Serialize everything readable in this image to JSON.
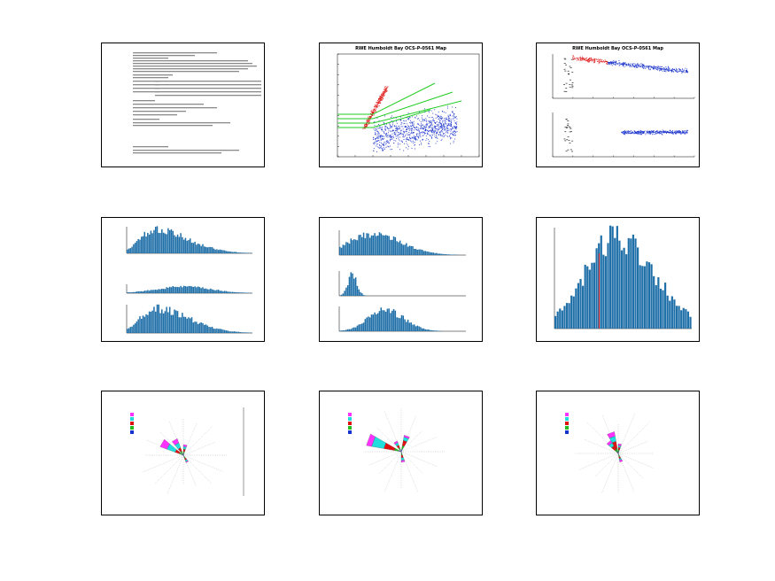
{
  "titles": {
    "scatter": "RWE Humboldt Bay OCS-P-0561 Map",
    "binned": "RWE Humboldt Bay OCS-P-0561 Map"
  },
  "colors": {
    "bar_blue": "#1f6fa8",
    "bar_dark": "#0b3a5c",
    "scatter_red": "#e02020",
    "scatter_blue": "#1a33cc",
    "fit_green": "#22cc22",
    "rose_magenta": "#ff33ff",
    "rose_cyan": "#22dddd",
    "rose_red": "#dd1111",
    "rose_green": "#22bb22",
    "rose_blue": "#1133cc"
  },
  "chart_data": [
    {
      "type": "table",
      "panel": "text-summary"
    },
    {
      "type": "scatter",
      "panel": "scatter-fit",
      "title": "RWE Humboldt Bay OCS-P-0561 Map",
      "xlim": [
        0,
        20
      ],
      "ylim": [
        0,
        20
      ]
    },
    {
      "type": "scatter",
      "panel": "binned-scatter",
      "title": "RWE Humboldt Bay OCS-P-0561 Map"
    },
    {
      "type": "bar",
      "panel": "histogram-stack-1",
      "series_count": 3
    },
    {
      "type": "bar",
      "panel": "histogram-stack-2",
      "series_count": 3
    },
    {
      "type": "bar",
      "panel": "histogram-single"
    },
    {
      "type": "pie",
      "panel": "wind-rose-1"
    },
    {
      "type": "pie",
      "panel": "wind-rose-2"
    },
    {
      "type": "pie",
      "panel": "wind-rose-3"
    }
  ]
}
